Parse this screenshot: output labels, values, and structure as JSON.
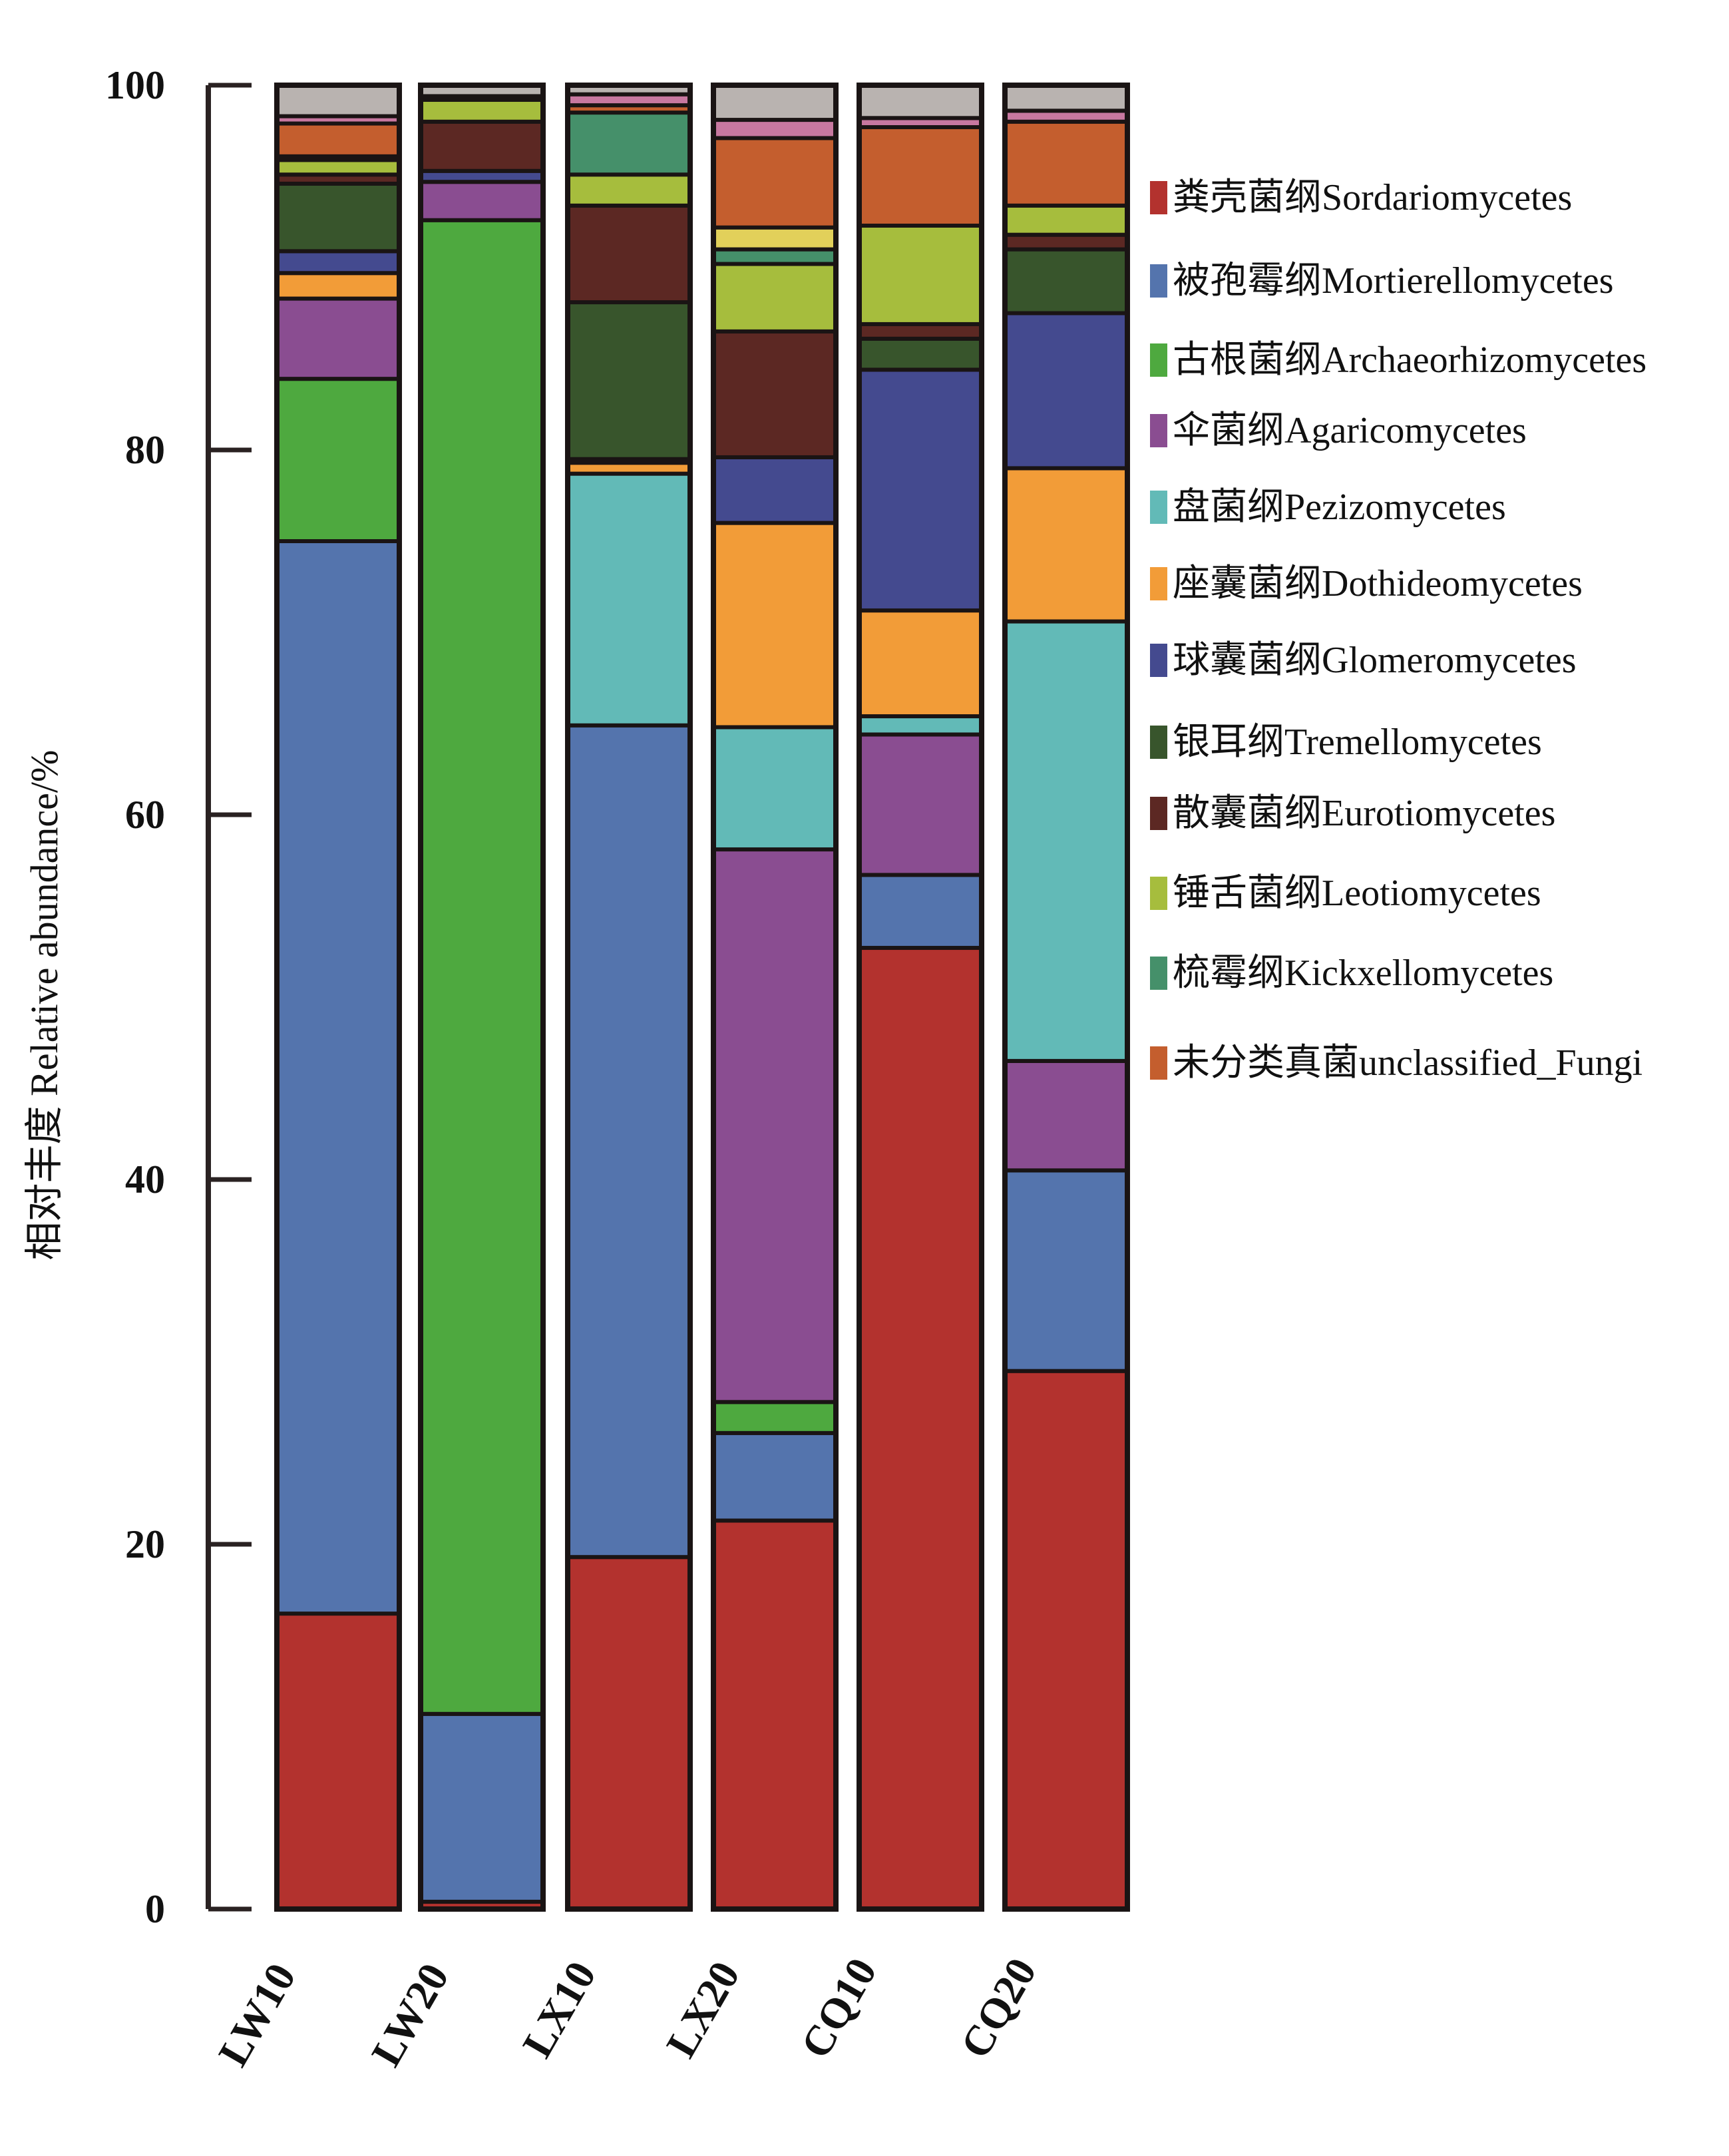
{
  "chart_data": {
    "type": "bar",
    "stacked": true,
    "title": "",
    "xlabel": "",
    "ylabel": "相对丰度 Relative abundance/%",
    "ylim": [
      0,
      100
    ],
    "yticks": [
      0,
      20,
      40,
      60,
      80,
      100
    ],
    "grid": false,
    "legend_position": "right",
    "categories": [
      "LW10",
      "LW20",
      "LX10",
      "LX20",
      "CQ10",
      "CQ20"
    ],
    "series": [
      {
        "name": "粪壳菌纲Sordariomycetes",
        "color": "#B3322E",
        "in_legend": true,
        "values": [
          16.2,
          0.4,
          19.3,
          21.3,
          52.7,
          29.5
        ]
      },
      {
        "name": "被孢霉纲Mortierellomycetes",
        "color": "#5474AD",
        "in_legend": true,
        "values": [
          58.8,
          10.3,
          45.6,
          4.8,
          4.0,
          11.0
        ]
      },
      {
        "name": "古根菌纲Archaeorhizomycetes",
        "color": "#4EA93F",
        "in_legend": true,
        "values": [
          8.9,
          81.9,
          0.0,
          1.7,
          0.0,
          0.0
        ]
      },
      {
        "name": "伞菌纲Agaricomycetes",
        "color": "#8A4D91",
        "in_legend": true,
        "values": [
          4.4,
          2.1,
          0.0,
          30.3,
          7.7,
          6.0
        ]
      },
      {
        "name": "盘菌纲Pezizomycetes",
        "color": "#62BAB7",
        "in_legend": true,
        "values": [
          0.0,
          0.0,
          13.8,
          6.7,
          1.0,
          24.1
        ]
      },
      {
        "name": "座囊菌纲Dothideomycetes",
        "color": "#F29C38",
        "in_legend": true,
        "values": [
          1.4,
          0.0,
          0.6,
          11.2,
          5.8,
          8.4
        ]
      },
      {
        "name": "球囊菌纲Glomeromycetes",
        "color": "#444A8F",
        "in_legend": true,
        "values": [
          1.2,
          0.6,
          0.2,
          3.6,
          13.2,
          8.5
        ]
      },
      {
        "name": "银耳纲Tremellomycetes",
        "color": "#38552C",
        "in_legend": true,
        "values": [
          3.7,
          0.0,
          8.6,
          0.0,
          1.7,
          3.5
        ]
      },
      {
        "name": "散囊菌纲Eurotiomycetes",
        "color": "#5C2823",
        "in_legend": true,
        "values": [
          0.5,
          2.7,
          5.3,
          6.9,
          0.8,
          0.8
        ]
      },
      {
        "name": "锤舌菌纲Leotiomycetes",
        "color": "#A6BD3D",
        "in_legend": true,
        "values": [
          0.8,
          1.2,
          1.7,
          3.7,
          5.4,
          1.6
        ]
      },
      {
        "name": "梳霉纲Kickxellomycetes",
        "color": "#45906A",
        "in_legend": true,
        "values": [
          0.2,
          0.0,
          3.4,
          0.8,
          0.0,
          0.0
        ]
      },
      {
        "name": "unlabeled-yellow",
        "color": "#E2D05A",
        "in_legend": false,
        "values": [
          0.0,
          0.0,
          0.0,
          1.2,
          0.0,
          0.0
        ]
      },
      {
        "name": "未分类真菌unclassified_Fungi",
        "color": "#C45E2E",
        "in_legend": true,
        "values": [
          1.8,
          0.2,
          0.4,
          4.9,
          5.4,
          4.6
        ]
      },
      {
        "name": "unlabeled-pink",
        "color": "#C878A0",
        "in_legend": false,
        "values": [
          0.4,
          0.0,
          0.6,
          1.0,
          0.5,
          0.6
        ]
      },
      {
        "name": "unlabeled-others",
        "color": "#B9B3B0",
        "in_legend": false,
        "values": [
          1.7,
          0.6,
          0.5,
          1.9,
          1.8,
          1.4
        ]
      }
    ]
  },
  "legend": {
    "items": [
      {
        "label": "粪壳菌纲Sordariomycetes",
        "color": "#B3322E"
      },
      {
        "label": "被孢霉纲Mortierellomycetes",
        "color": "#5474AD"
      },
      {
        "label": "古根菌纲Archaeorhizomycetes",
        "color": "#4EA93F"
      },
      {
        "label": "伞菌纲Agaricomycetes",
        "color": "#8A4D91"
      },
      {
        "label": "盘菌纲Pezizomycetes",
        "color": "#62BAB7"
      },
      {
        "label": "座囊菌纲Dothideomycetes",
        "color": "#F29C38"
      },
      {
        "label": "球囊菌纲Glomeromycetes",
        "color": "#444A8F"
      },
      {
        "label": "银耳纲Tremellomycetes",
        "color": "#38552C"
      },
      {
        "label": "散囊菌纲Eurotiomycetes",
        "color": "#5C2823"
      },
      {
        "label": "锤舌菌纲Leotiomycetes",
        "color": "#A6BD3D"
      },
      {
        "label": "梳霉纲Kickxellomycetes",
        "color": "#45906A"
      },
      {
        "label": "未分类真菌unclassified_Fungi",
        "color": "#C45E2E"
      }
    ]
  }
}
